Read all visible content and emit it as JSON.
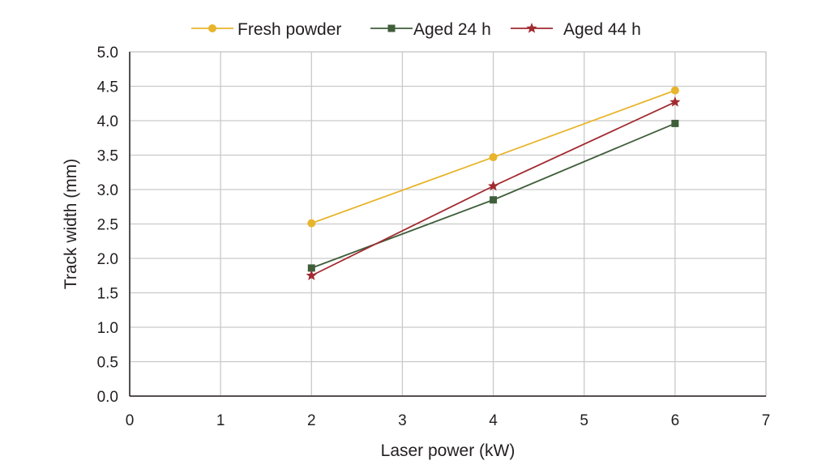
{
  "chart_data": {
    "type": "line",
    "xlabel": "Laser power (kW)",
    "ylabel": "Track width (mm)",
    "xlim": [
      0,
      7
    ],
    "ylim": [
      0,
      5
    ],
    "xticks": [
      0,
      1,
      2,
      3,
      4,
      5,
      6,
      7
    ],
    "xtick_labels": [
      "0",
      "1",
      "2",
      "3",
      "4",
      "5",
      "6",
      "7"
    ],
    "yticks": [
      0,
      0.5,
      1,
      1.5,
      2,
      2.5,
      3,
      3.5,
      4,
      4.5,
      5
    ],
    "ytick_labels": [
      "0.0",
      "0.5",
      "1.0",
      "1.5",
      "2.0",
      "2.5",
      "3.0",
      "3.5",
      "4.0",
      "4.5",
      "5.0"
    ],
    "grid": true,
    "legend_position": "top",
    "series": [
      {
        "name": "Fresh powder",
        "color": "#e8b42c",
        "marker": "circle",
        "x": [
          2,
          4,
          6
        ],
        "y": [
          2.51,
          3.47,
          4.44
        ]
      },
      {
        "name": "Aged 24 h",
        "color": "#3f5e3a",
        "marker": "square",
        "x": [
          2,
          4,
          6
        ],
        "y": [
          1.86,
          2.85,
          3.96
        ]
      },
      {
        "name": "Aged 44 h",
        "color": "#a12a30",
        "marker": "star",
        "x": [
          2,
          4,
          6
        ],
        "y": [
          1.75,
          3.05,
          4.27
        ]
      }
    ]
  }
}
